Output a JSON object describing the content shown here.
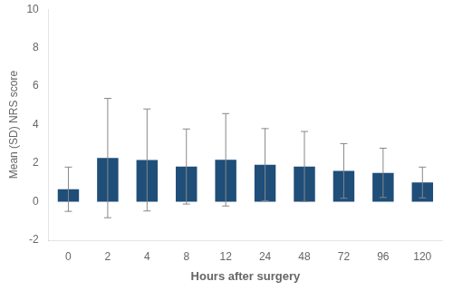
{
  "chart_data": {
    "type": "bar",
    "xlabel": "Hours after surgery",
    "ylabel": "Mean (SD) NRS score",
    "categories": [
      "0",
      "2",
      "4",
      "8",
      "12",
      "24",
      "48",
      "72",
      "96",
      "120"
    ],
    "values": [
      0.65,
      2.27,
      2.17,
      1.83,
      2.18,
      1.92,
      1.83,
      1.6,
      1.5,
      1.0
    ],
    "errors": [
      1.15,
      3.1,
      2.65,
      1.95,
      2.4,
      1.88,
      1.82,
      1.42,
      1.28,
      0.8
    ],
    "color": "#1f4e79",
    "error_color": "#888888",
    "ylim": [
      -2,
      10
    ],
    "yticks": [
      -2,
      0,
      2,
      4,
      6,
      8,
      10
    ],
    "grid": false
  }
}
